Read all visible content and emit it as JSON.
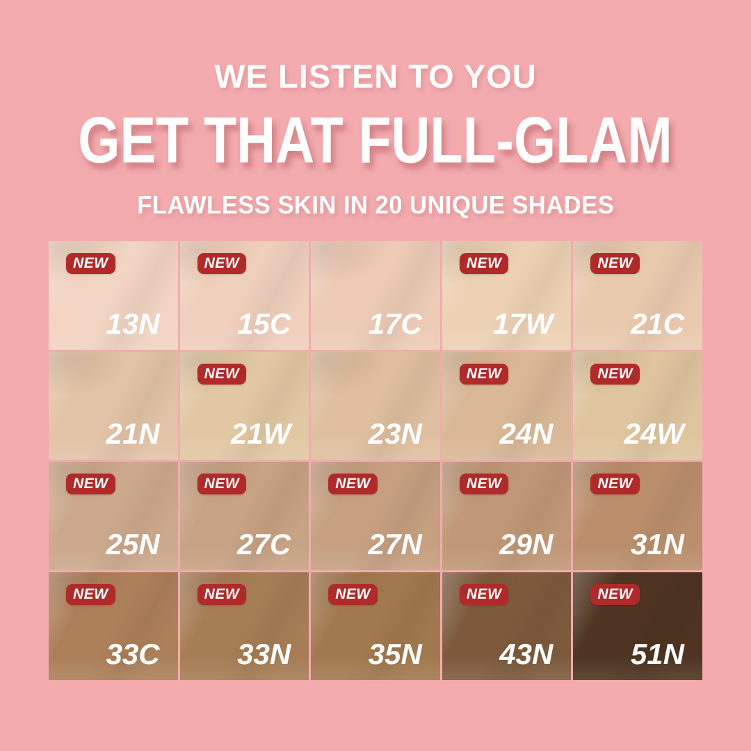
{
  "page": {
    "background_color": "#F3ABAE"
  },
  "header": {
    "kicker": "WE LISTEN TO YOU",
    "title": "GET THAT FULL-GLAM",
    "subtitle": "FLAWLESS SKIN IN 20 UNIQUE SHADES",
    "text_color": "#FFFFFF"
  },
  "badge": {
    "label": "NEW",
    "background_color": "#B02A2A",
    "text_color": "#FFFFFF"
  },
  "shades": [
    {
      "code": "13N",
      "color": "#F2D4C2",
      "new": true
    },
    {
      "code": "15C",
      "color": "#F0CFBC",
      "new": true
    },
    {
      "code": "17C",
      "color": "#EDCBB6",
      "new": false
    },
    {
      "code": "17W",
      "color": "#EDD1B4",
      "new": true
    },
    {
      "code": "21C",
      "color": "#EACAAF",
      "new": true
    },
    {
      "code": "21N",
      "color": "#E3C3A7",
      "new": false
    },
    {
      "code": "21W",
      "color": "#E2C7A3",
      "new": true
    },
    {
      "code": "23N",
      "color": "#DFBF9F",
      "new": false
    },
    {
      "code": "24N",
      "color": "#DAB897",
      "new": true
    },
    {
      "code": "24W",
      "color": "#DFC59E",
      "new": true
    },
    {
      "code": "25N",
      "color": "#CCA98C",
      "new": true
    },
    {
      "code": "27C",
      "color": "#C8A284",
      "new": true
    },
    {
      "code": "27N",
      "color": "#C6A081",
      "new": true
    },
    {
      "code": "29N",
      "color": "#C09877",
      "new": true
    },
    {
      "code": "31N",
      "color": "#BB8F6C",
      "new": true
    },
    {
      "code": "33C",
      "color": "#AC8059",
      "new": true
    },
    {
      "code": "33N",
      "color": "#A67D55",
      "new": true
    },
    {
      "code": "35N",
      "color": "#A2794F",
      "new": true
    },
    {
      "code": "43N",
      "color": "#7D5A3C",
      "new": true
    },
    {
      "code": "51N",
      "color": "#4E3421",
      "new": true
    }
  ]
}
